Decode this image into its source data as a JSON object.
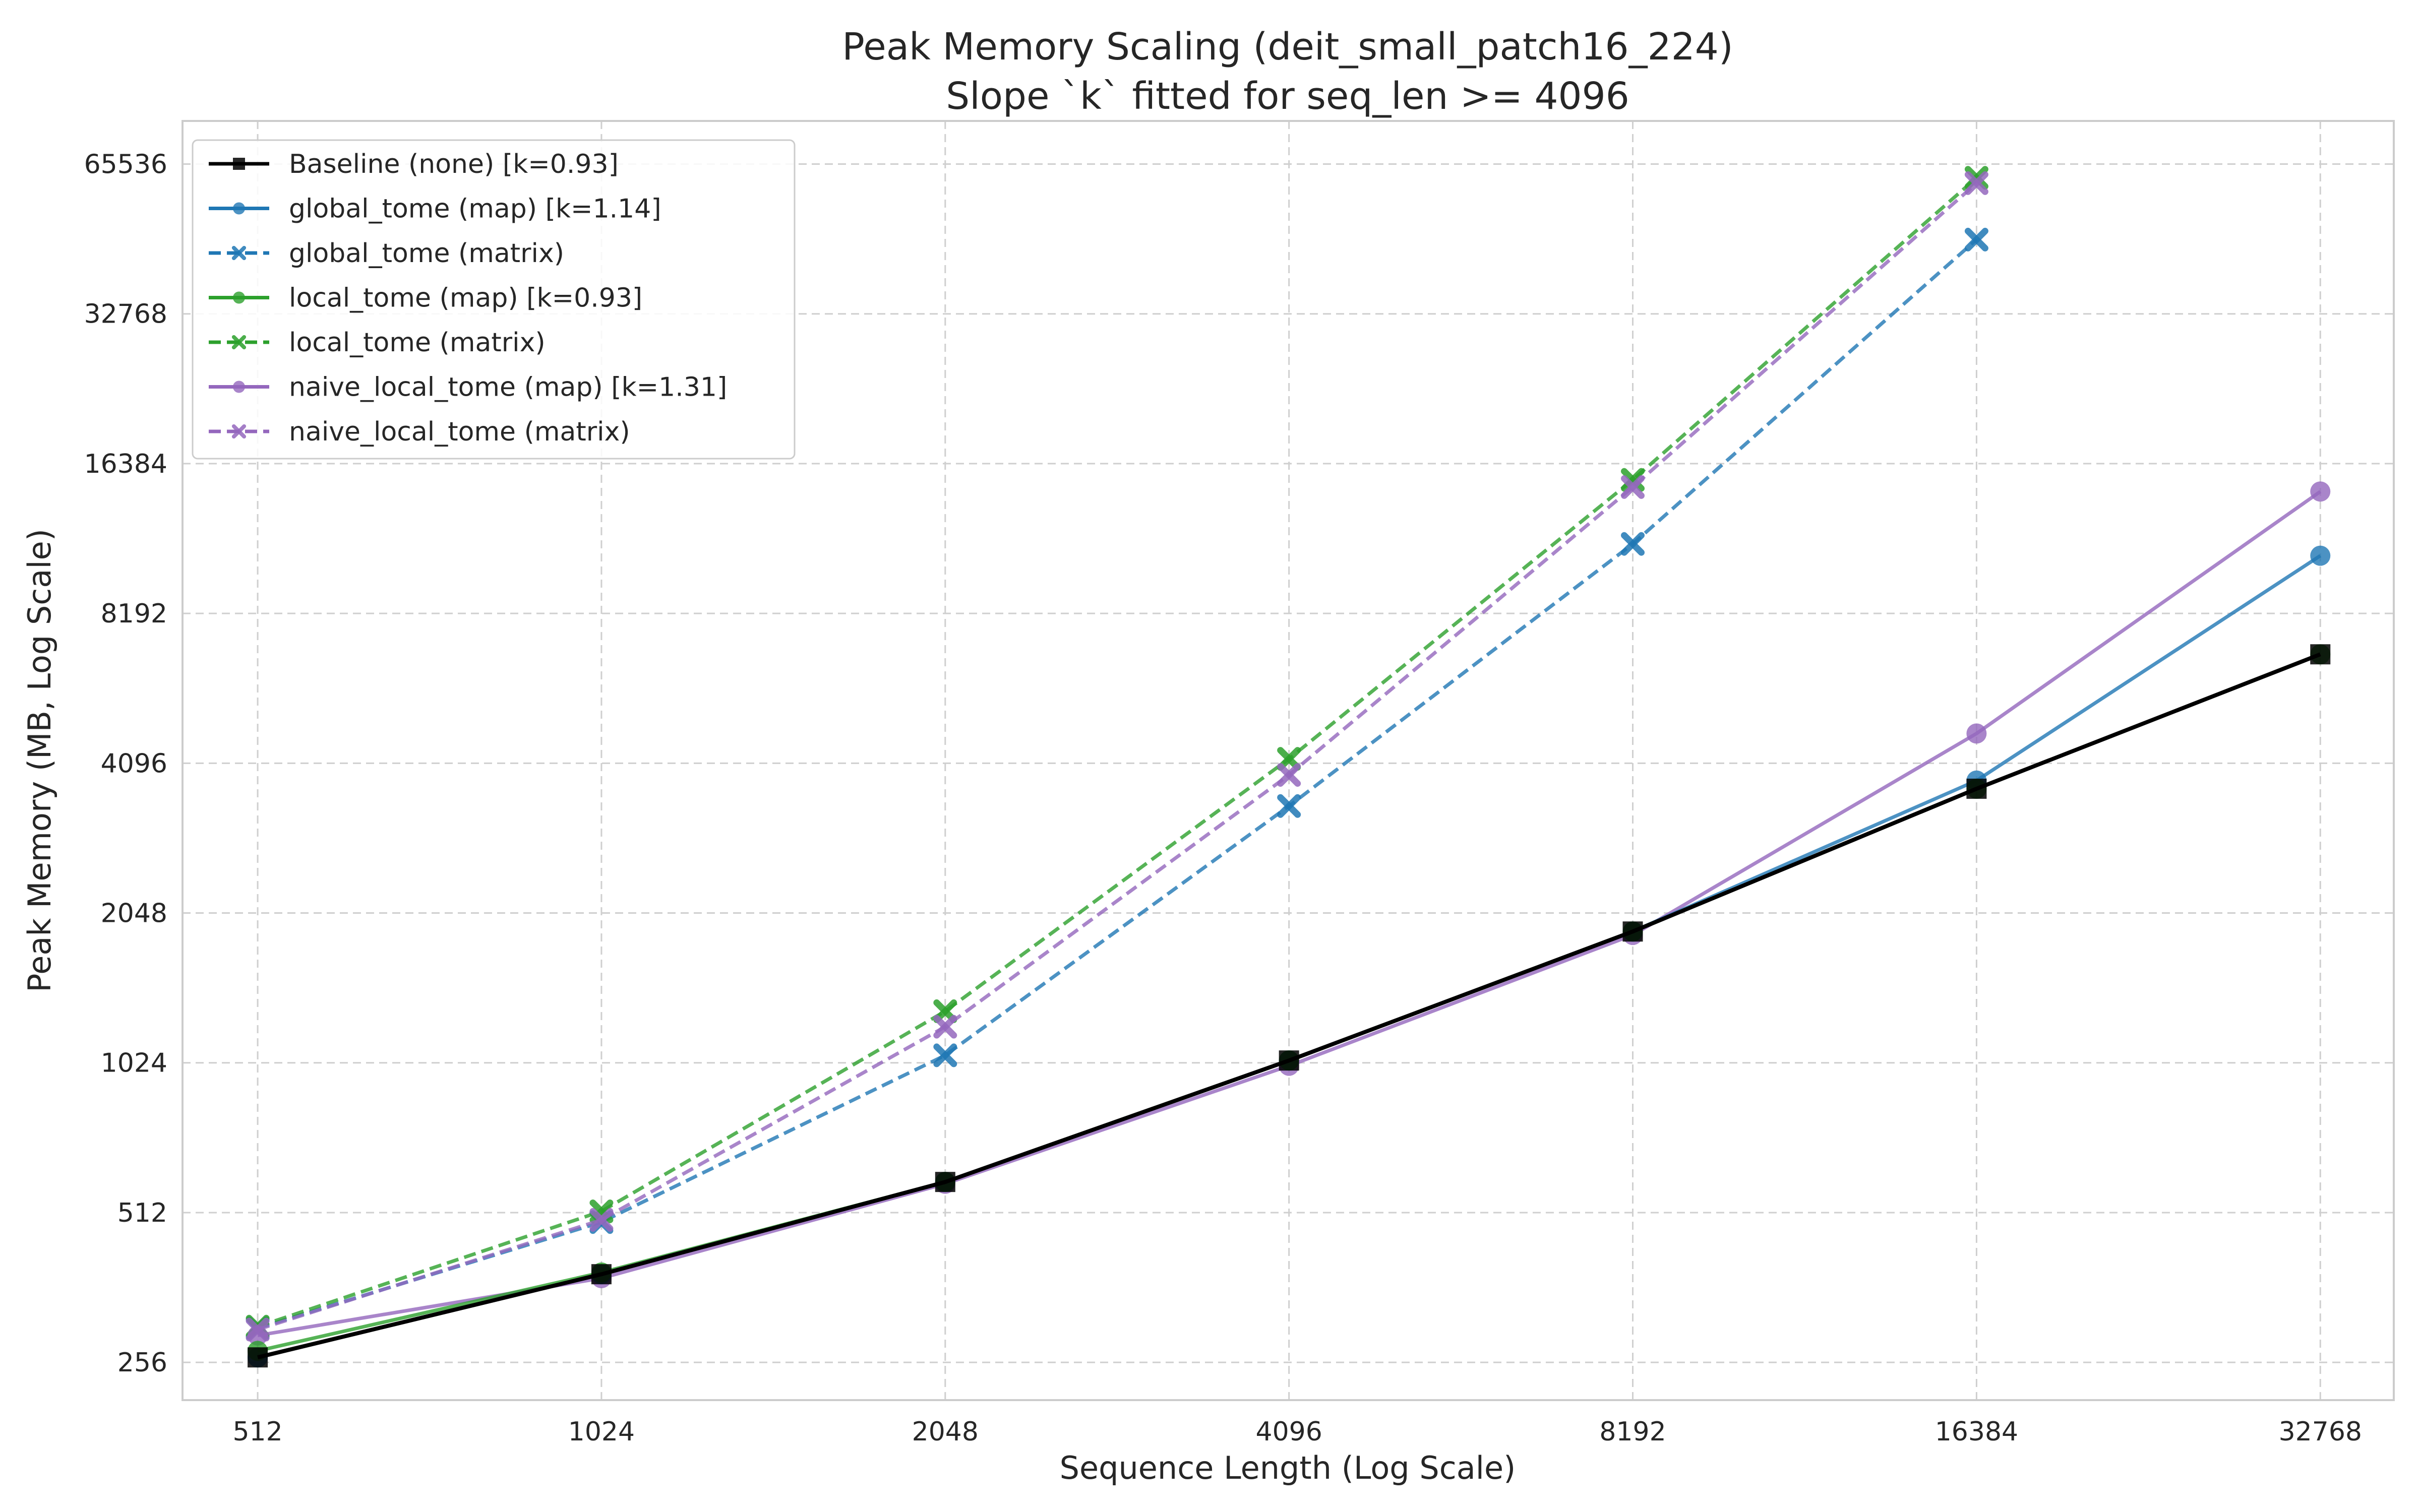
{
  "chart_data": {
    "type": "line",
    "title": "Peak Memory Scaling (deit_small_patch16_224)",
    "subtitle": "Slope `k` fitted for seq_len >= 4096",
    "xlabel": "Sequence Length (Log Scale)",
    "ylabel": "Peak Memory (MB, Log Scale)",
    "x_scale": "log2",
    "y_scale": "log2",
    "grid": true,
    "legend_position": "top-left",
    "xlim": [
      440,
      38000
    ],
    "ylim": [
      215,
      80000
    ],
    "x_ticks": [
      {
        "value": 512,
        "label": "512"
      },
      {
        "value": 1024,
        "label": "1024"
      },
      {
        "value": 2048,
        "label": "2048"
      },
      {
        "value": 4096,
        "label": "4096"
      },
      {
        "value": 8192,
        "label": "8192"
      },
      {
        "value": 16384,
        "label": "16384"
      },
      {
        "value": 32768,
        "label": "32768"
      }
    ],
    "y_ticks": [
      {
        "value": 256,
        "label": "256"
      },
      {
        "value": 512,
        "label": "512"
      },
      {
        "value": 1024,
        "label": "1024"
      },
      {
        "value": 2048,
        "label": "2048"
      },
      {
        "value": 4096,
        "label": "4096"
      },
      {
        "value": 8192,
        "label": "8192"
      },
      {
        "value": 16384,
        "label": "16384"
      },
      {
        "value": 32768,
        "label": "32768"
      },
      {
        "value": 65536,
        "label": "65536"
      }
    ],
    "series": [
      {
        "name": "Baseline (none) [k=0.93]",
        "color": "#000000",
        "dash": "solid",
        "marker": "square",
        "x": [
          512,
          1024,
          2048,
          4096,
          8192,
          16384,
          32768
        ],
        "y": [
          262,
          385,
          590,
          1035,
          1880,
          3640,
          6780
        ]
      },
      {
        "name": "global_tome (map) [k=1.14]",
        "color": "#1f77b4",
        "dash": "solid",
        "marker": "circle",
        "x": [
          512,
          1024,
          2048,
          4096,
          8192,
          16384,
          32768
        ],
        "y": [
          262,
          385,
          590,
          1035,
          1880,
          3780,
          10700
        ]
      },
      {
        "name": "global_tome (matrix)",
        "color": "#1f77b4",
        "dash": "dashed",
        "marker": "x",
        "x": [
          512,
          1024,
          2048,
          4096,
          8192,
          16384
        ],
        "y": [
          300,
          490,
          1060,
          3360,
          11300,
          46200
        ]
      },
      {
        "name": "local_tome (map) [k=0.93]",
        "color": "#2ca02c",
        "dash": "solid",
        "marker": "circle",
        "x": [
          512,
          1024,
          2048,
          4096,
          8192,
          16384,
          32768
        ],
        "y": [
          270,
          388,
          590,
          1035,
          1880,
          3640,
          6780
        ]
      },
      {
        "name": "local_tome (matrix)",
        "color": "#2ca02c",
        "dash": "dashed",
        "marker": "x",
        "x": [
          512,
          1024,
          2048,
          4096,
          8192,
          16384
        ],
        "y": [
          302,
          515,
          1300,
          4180,
          15200,
          61500
        ]
      },
      {
        "name": "naive_local_tome (map) [k=1.31]",
        "color": "#9467bd",
        "dash": "solid",
        "marker": "circle",
        "x": [
          512,
          1024,
          2048,
          4096,
          8192,
          16384,
          32768
        ],
        "y": [
          290,
          378,
          585,
          1010,
          1850,
          4700,
          14400
        ]
      },
      {
        "name": "naive_local_tome (matrix)",
        "color": "#9467bd",
        "dash": "dashed",
        "marker": "x",
        "x": [
          512,
          1024,
          2048,
          4096,
          8192,
          16384
        ],
        "y": [
          298,
          495,
          1210,
          3880,
          14700,
          60000
        ]
      }
    ]
  }
}
